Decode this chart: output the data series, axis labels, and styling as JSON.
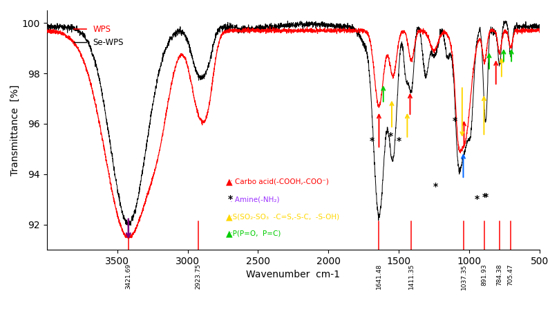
{
  "xlabel": "Wavenumber  cm-1",
  "ylabel": "Transmittance  [%]",
  "xlim": [
    4000,
    500
  ],
  "ylim": [
    91.0,
    100.5
  ],
  "yticks": [
    92,
    94,
    96,
    98,
    100
  ],
  "xticks": [
    3500,
    3000,
    2500,
    2000,
    1500,
    1000,
    500
  ],
  "legend_wps": "WPS",
  "legend_sewps": "Se-WPS",
  "wps_color": "#FF0000",
  "sewps_color": "#000000",
  "vlines": [
    3421.69,
    2923.75,
    1641.48,
    1411.35,
    1037.35,
    891.93,
    784.38,
    705.47
  ],
  "vline_color": "#FF0000",
  "background_color": "#FFFFFF",
  "annotation_text": {
    "carbo": "▲ : Carbo acid(-COOH,-COO⁻)",
    "amine": "* : Amine(-NH₂)",
    "sulfur": "▲:S(SO₂-SO₃  -C=S,-S-C,  -S-OH)",
    "phosph": "▲:P(P=O,  P=C)"
  },
  "annotation_colors": {
    "carbo": "#FF0000",
    "amine_star": "#000000",
    "amine_text": "#9B30FF",
    "sulfur": "#FFD700",
    "phosph": "#00CC00",
    "blue": "#0066FF",
    "purple": "#800080"
  }
}
